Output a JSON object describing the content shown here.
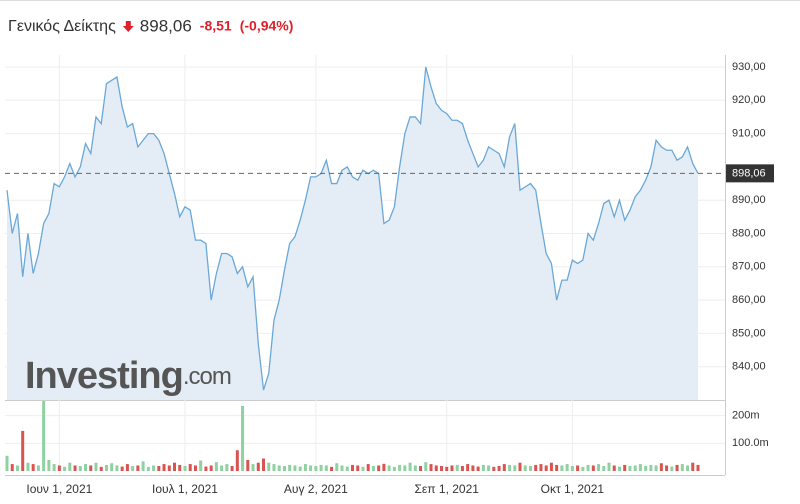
{
  "chart_data": {
    "type": "line",
    "title": "Γενικός Δείκτης",
    "current": {
      "value": 898.06,
      "label": "898,06"
    },
    "change": {
      "value": -8.51,
      "label": "-8,51"
    },
    "change_pct": {
      "value": -0.94,
      "label": "(-0,94%)"
    },
    "watermark": {
      "main": "Investing",
      "suffix": ".com"
    },
    "color": "#6aa8d8",
    "fill": "#e4edf6",
    "down_color": "#e0202b",
    "ylim": [
      830,
      933.6
    ],
    "yticks": [
      {
        "value": 840,
        "label": "840,00"
      },
      {
        "value": 850,
        "label": "850,00"
      },
      {
        "value": 860,
        "label": "860,00"
      },
      {
        "value": 870,
        "label": "870,00"
      },
      {
        "value": 880,
        "label": "880,00"
      },
      {
        "value": 890,
        "label": "890,00"
      },
      {
        "value": 910,
        "label": "910,00"
      },
      {
        "value": 920,
        "label": "920,00"
      },
      {
        "value": 930,
        "label": "930,00"
      }
    ],
    "categories": [
      null,
      null,
      null,
      null,
      null,
      null,
      null,
      null,
      null,
      null,
      "Ιουν 1, 2021",
      null,
      null,
      null,
      null,
      null,
      null,
      null,
      null,
      null,
      null,
      null,
      null,
      null,
      null,
      null,
      null,
      null,
      null,
      null,
      null,
      null,
      null,
      null,
      "Ιουλ 1, 2021",
      null,
      null,
      null,
      null,
      null,
      null,
      null,
      null,
      null,
      null,
      null,
      null,
      null,
      null,
      null,
      null,
      null,
      null,
      null,
      null,
      null,
      null,
      null,
      null,
      "Αυγ 2, 2021",
      null,
      null,
      null,
      null,
      null,
      null,
      null,
      null,
      null,
      null,
      null,
      null,
      null,
      null,
      null,
      null,
      null,
      null,
      null,
      null,
      null,
      null,
      null,
      null,
      "Σεπ 1, 2021",
      null,
      null,
      null,
      null,
      null,
      null,
      null,
      null,
      null,
      null,
      null,
      null,
      null,
      null,
      null,
      null,
      null,
      null,
      null,
      null,
      null,
      null,
      null,
      "Οκτ 1, 2021",
      null,
      null,
      null,
      null,
      null,
      null,
      null,
      null,
      null,
      null,
      null,
      null,
      null,
      null,
      null,
      null,
      null,
      null,
      null,
      null,
      null,
      null,
      null,
      null
    ],
    "values": [
      893,
      880,
      886,
      867,
      880,
      868,
      874,
      883,
      886,
      895,
      894,
      897,
      901,
      897,
      900,
      907,
      904,
      915,
      913,
      925,
      926,
      927,
      918,
      912,
      913,
      906,
      908,
      910,
      910,
      908,
      904,
      898,
      892,
      885,
      888,
      887,
      878,
      878,
      877,
      860,
      868,
      874,
      874,
      873,
      868,
      870,
      864,
      867,
      847,
      833,
      838,
      854,
      860,
      869,
      877,
      879,
      884,
      890,
      897,
      897,
      898,
      902,
      895,
      895,
      899,
      900,
      897,
      896,
      899,
      898,
      899,
      898,
      883,
      884,
      888,
      900,
      910,
      915,
      915,
      913,
      930,
      924,
      919,
      917,
      916,
      914,
      914,
      913,
      908,
      904,
      900,
      902,
      906,
      905,
      904,
      900,
      909,
      913,
      893,
      894,
      895,
      893,
      883,
      874,
      871,
      860,
      866,
      866,
      872,
      871,
      872,
      880,
      878,
      883,
      889,
      890,
      885,
      890,
      884,
      887,
      891,
      893,
      896,
      900,
      908,
      906,
      905,
      905,
      902,
      903,
      906,
      901,
      898.06
    ],
    "volume": {
      "type": "bar",
      "up_color": "#8fd1a0",
      "down_color": "#d9534f",
      "ylim": [
        0,
        253000000
      ],
      "yticks": [
        {
          "value": 100000000,
          "label": "100.0m"
        },
        {
          "value": 200000000,
          "label": "200m"
        }
      ],
      "values": [
        55000000.0,
        25000000.0,
        20000000.0,
        145000000.0,
        30000000.0,
        25000000.0,
        20000000.0,
        253000000.0,
        40000000.0,
        25000000.0,
        20000000.0,
        15000000.0,
        30000000.0,
        20000000.0,
        18000000.0,
        25000000.0,
        20000000.0,
        30000000.0,
        15000000.0,
        22000000.0,
        28000000.0,
        20000000.0,
        16000000.0,
        25000000.0,
        18000000.0,
        20000000.0,
        35000000.0,
        15000000.0,
        20000000.0,
        18000000.0,
        25000000.0,
        20000000.0,
        30000000.0,
        22000000.0,
        18000000.0,
        25000000.0,
        20000000.0,
        38000000.0,
        16000000.0,
        20000000.0,
        32000000.0,
        20000000.0,
        25000000.0,
        18000000.0,
        75000000.0,
        235000000.0,
        40000000.0,
        25000000.0,
        30000000.0,
        45000000.0,
        30000000.0,
        25000000.0,
        20000000.0,
        18000000.0,
        22000000.0,
        20000000.0,
        16000000.0,
        25000000.0,
        20000000.0,
        18000000.0,
        22000000.0,
        20000000.0,
        15000000.0,
        28000000.0,
        20000000.0,
        16000000.0,
        22000000.0,
        20000000.0,
        15000000.0,
        25000000.0,
        18000000.0,
        20000000.0,
        26000000.0,
        20000000.0,
        15000000.0,
        22000000.0,
        20000000.0,
        30000000.0,
        20000000.0,
        18000000.0,
        32000000.0,
        25000000.0,
        20000000.0,
        18000000.0,
        15000000.0,
        20000000.0,
        22000000.0,
        18000000.0,
        25000000.0,
        20000000.0,
        16000000.0,
        22000000.0,
        20000000.0,
        15000000.0,
        18000000.0,
        25000000.0,
        22000000.0,
        20000000.0,
        30000000.0,
        20000000.0,
        18000000.0,
        22000000.0,
        25000000.0,
        20000000.0,
        30000000.0,
        22000000.0,
        20000000.0,
        25000000.0,
        18000000.0,
        20000000.0,
        15000000.0,
        22000000.0,
        20000000.0,
        25000000.0,
        18000000.0,
        30000000.0,
        20000000.0,
        16000000.0,
        22000000.0,
        18000000.0,
        20000000.0,
        25000000.0,
        18000000.0,
        22000000.0,
        20000000.0,
        28000000.0,
        20000000.0,
        16000000.0,
        22000000.0,
        25000000.0,
        20000000.0,
        30000000.0,
        22000000.0
      ]
    }
  }
}
